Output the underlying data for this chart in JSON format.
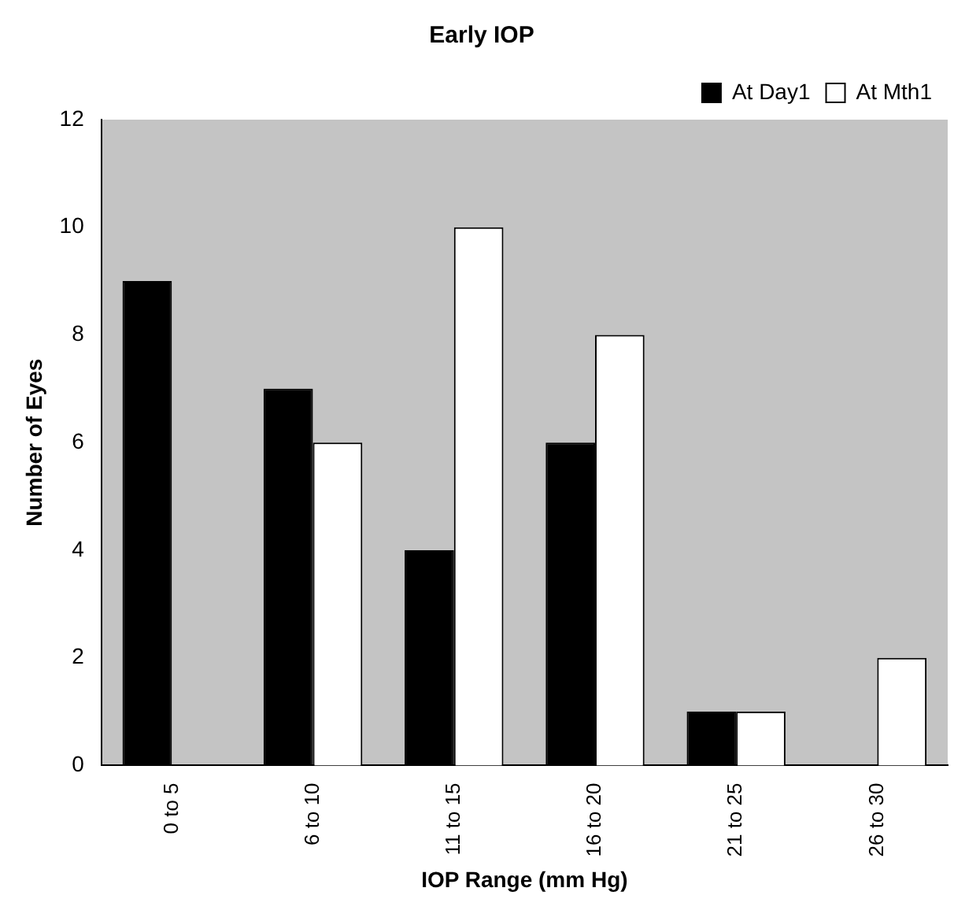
{
  "chart_data": {
    "type": "bar",
    "title": "Early IOP",
    "xlabel": "IOP Range (mm Hg)",
    "ylabel": "Number of Eyes",
    "categories": [
      "0 to 5",
      "6 to 10",
      "11 to 15",
      "16 to 20",
      "21 to 25",
      "26 to 30"
    ],
    "series": [
      {
        "name": "At Day1",
        "color": "#000000",
        "values": [
          9,
          7,
          4,
          6,
          1,
          0
        ]
      },
      {
        "name": "At Mth1",
        "color": "#ffffff",
        "values": [
          0,
          6,
          10,
          8,
          1,
          2
        ]
      }
    ],
    "ylim": [
      0,
      12
    ],
    "yticks": [
      0,
      2,
      4,
      6,
      8,
      10,
      12
    ],
    "grid": false,
    "legend": "top right"
  }
}
